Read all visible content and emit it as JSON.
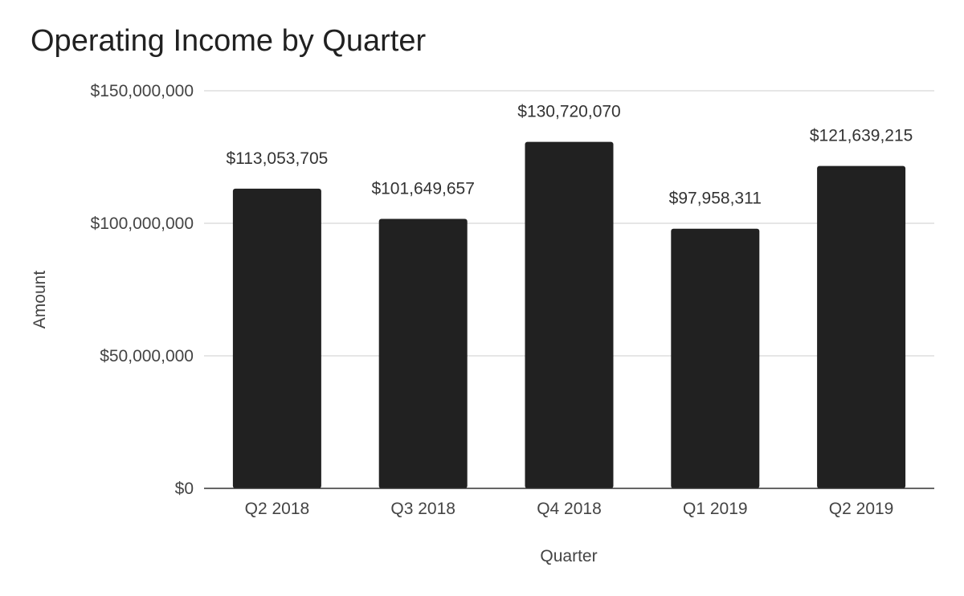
{
  "chart_data": {
    "type": "bar",
    "title": "Operating Income by Quarter",
    "xlabel": "Quarter",
    "ylabel": "Amount",
    "categories": [
      "Q2 2018",
      "Q3 2018",
      "Q4 2018",
      "Q1 2019",
      "Q2 2019"
    ],
    "values": [
      113053705,
      101649657,
      130720070,
      97958311,
      121639215
    ],
    "data_labels": [
      "$113,053,705",
      "$101,649,657",
      "$130,720,070",
      "$97,958,311",
      "$121,639,215"
    ],
    "ylim": [
      0,
      150000000
    ],
    "yticks": [
      0,
      50000000,
      100000000,
      150000000
    ],
    "ytick_labels": [
      "$0",
      "$50,000,000",
      "$100,000,000",
      "$150,000,000"
    ],
    "grid": true,
    "legend": "none",
    "bar_color": "#212121"
  }
}
